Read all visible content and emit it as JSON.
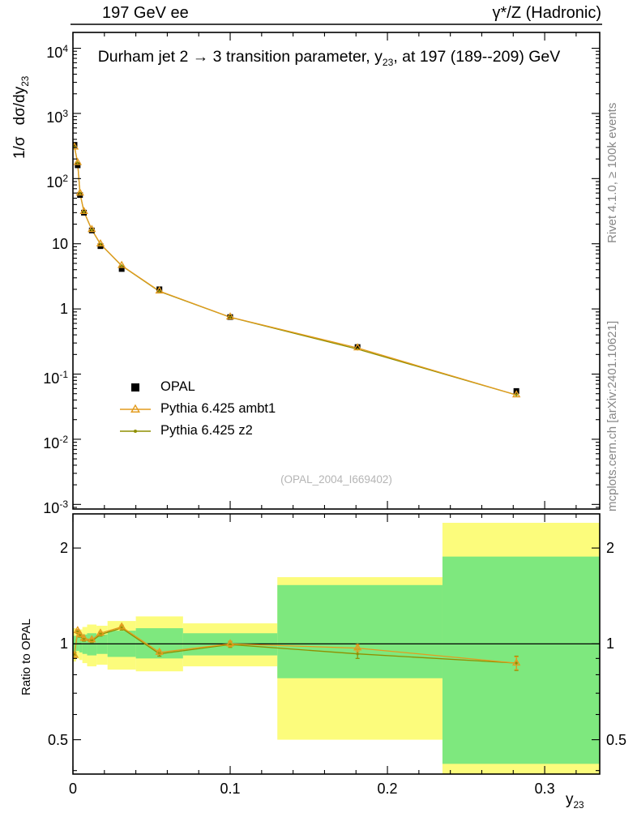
{
  "header": {
    "left": "197 GeV ee",
    "right": "γ*/Z (Hadronic)"
  },
  "title": {
    "pre": "Durham jet 2 → 3 transition parameter, y",
    "sub": "23",
    "post": ", at 197 (189--209) GeV"
  },
  "axes": {
    "main_ylabel_pre": "1/σ",
    "main_ylabel_main": "dσ/dy",
    "main_ylabel_sub": "23",
    "ratio_ylabel": "Ratio to OPAL",
    "xlabel_pre": "y",
    "xlabel_sub": "23"
  },
  "legend": [
    {
      "id": "opal",
      "label": "OPAL",
      "marker": "square",
      "color": "#000000"
    },
    {
      "id": "ambt1",
      "label": "Pythia 6.425 ambt1",
      "marker": "triangle-line",
      "color": "#e39c1f"
    },
    {
      "id": "z2",
      "label": "Pythia 6.425 z2",
      "marker": "dot-line",
      "color": "#8f8f00"
    }
  ],
  "watermark": "(OPAL_2004_I669402)",
  "side_notes": {
    "top_right": "Rivet 4.1.0, ≥ 100k events",
    "bottom_right": "mcplots.cern.ch [arXiv:2401.10621]"
  },
  "colors": {
    "opal": "#000000",
    "ambt1": "#e39c1f",
    "z2": "#8f8f00",
    "band_yellow": "#fcfc7c",
    "band_green": "#7ee87e",
    "frame": "#000000",
    "gray_text": "#878787",
    "watermark": "#b5b5b5"
  },
  "chart_data": {
    "type": "line",
    "title": "Durham jet 2 -> 3 transition parameter, y23, at 197 (189--209) GeV",
    "xlabel": "y23",
    "ylabel_main": "1/sigma dsigma/dy23",
    "ylabel_ratio": "Ratio to OPAL",
    "legend_position": "middle-left",
    "grid": false,
    "x_range": [
      0,
      0.335
    ],
    "x_ticks": [
      0,
      0.1,
      0.2,
      0.3
    ],
    "x_tick_labels": [
      "0",
      "0.1",
      "0.2",
      "0.3"
    ],
    "x_minor_step": 0.02,
    "x": [
      0.001,
      0.003,
      0.0045,
      0.007,
      0.012,
      0.0175,
      0.031,
      0.055,
      0.1,
      0.181,
      0.282
    ],
    "main": {
      "y_scale": "log",
      "y_range": [
        0.00085,
        17500
      ],
      "y_tick_exponents": [
        4,
        3,
        2,
        1,
        0,
        -1,
        -2,
        -3
      ],
      "opal_values": [
        330,
        160,
        56,
        30,
        16,
        9.2,
        4.1,
        2.0,
        0.75,
        0.26,
        0.055
      ],
      "opal_err_frac": [
        0.03,
        0.03,
        0.03,
        0.03,
        0.03,
        0.03,
        0.03,
        0.03,
        0.04,
        0.05,
        0.07
      ]
    },
    "ratio": {
      "y_scale": "log",
      "y_range": [
        0.39,
        2.56
      ],
      "y_ticks": [
        0.5,
        1,
        2
      ],
      "y_tick_labels": [
        "0.5",
        "1",
        "2"
      ],
      "y_minor_ticks": [
        0.4,
        0.6,
        0.7,
        0.8,
        0.9
      ],
      "series": [
        {
          "name": "Pythia 6.425 ambt1",
          "values": [
            0.92,
            1.1,
            1.07,
            1.04,
            1.03,
            1.08,
            1.13,
            0.94,
            1.0,
            0.97,
            0.87
          ],
          "errors": [
            0.01,
            0.01,
            0.01,
            0.01,
            0.01,
            0.012,
            0.015,
            0.015,
            0.02,
            0.025,
            0.04
          ]
        },
        {
          "name": "Pythia 6.425 z2",
          "values": [
            0.93,
            1.09,
            1.06,
            1.03,
            1.02,
            1.07,
            1.12,
            0.93,
            0.995,
            0.93,
            0.87
          ],
          "errors": [
            0.01,
            0.01,
            0.01,
            0.01,
            0.01,
            0.012,
            0.015,
            0.015,
            0.02,
            0.03,
            0.045
          ]
        }
      ],
      "bands": [
        {
          "x": [
            0,
            0.002
          ],
          "yellow": [
            0.88,
            1.12
          ],
          "green": [
            0.94,
            1.06
          ]
        },
        {
          "x": [
            0.002,
            0.004
          ],
          "yellow": [
            0.9,
            1.1
          ],
          "green": [
            0.95,
            1.05
          ]
        },
        {
          "x": [
            0.004,
            0.006
          ],
          "yellow": [
            0.89,
            1.11
          ],
          "green": [
            0.94,
            1.06
          ]
        },
        {
          "x": [
            0.006,
            0.009
          ],
          "yellow": [
            0.87,
            1.13
          ],
          "green": [
            0.93,
            1.07
          ]
        },
        {
          "x": [
            0.009,
            0.015
          ],
          "yellow": [
            0.85,
            1.15
          ],
          "green": [
            0.92,
            1.08
          ]
        },
        {
          "x": [
            0.015,
            0.022
          ],
          "yellow": [
            0.86,
            1.14
          ],
          "green": [
            0.93,
            1.07
          ]
        },
        {
          "x": [
            0.022,
            0.04
          ],
          "yellow": [
            0.83,
            1.18
          ],
          "green": [
            0.91,
            1.1
          ]
        },
        {
          "x": [
            0.04,
            0.07
          ],
          "yellow": [
            0.82,
            1.22
          ],
          "green": [
            0.9,
            1.12
          ]
        },
        {
          "x": [
            0.07,
            0.13
          ],
          "yellow": [
            0.85,
            1.16
          ],
          "green": [
            0.92,
            1.08
          ]
        },
        {
          "x": [
            0.13,
            0.235
          ],
          "yellow": [
            0.5,
            1.62
          ],
          "green": [
            0.78,
            1.53
          ]
        },
        {
          "x": [
            0.235,
            0.335
          ],
          "yellow": [
            0.36,
            2.4
          ],
          "green": [
            0.42,
            1.88
          ]
        }
      ]
    }
  }
}
